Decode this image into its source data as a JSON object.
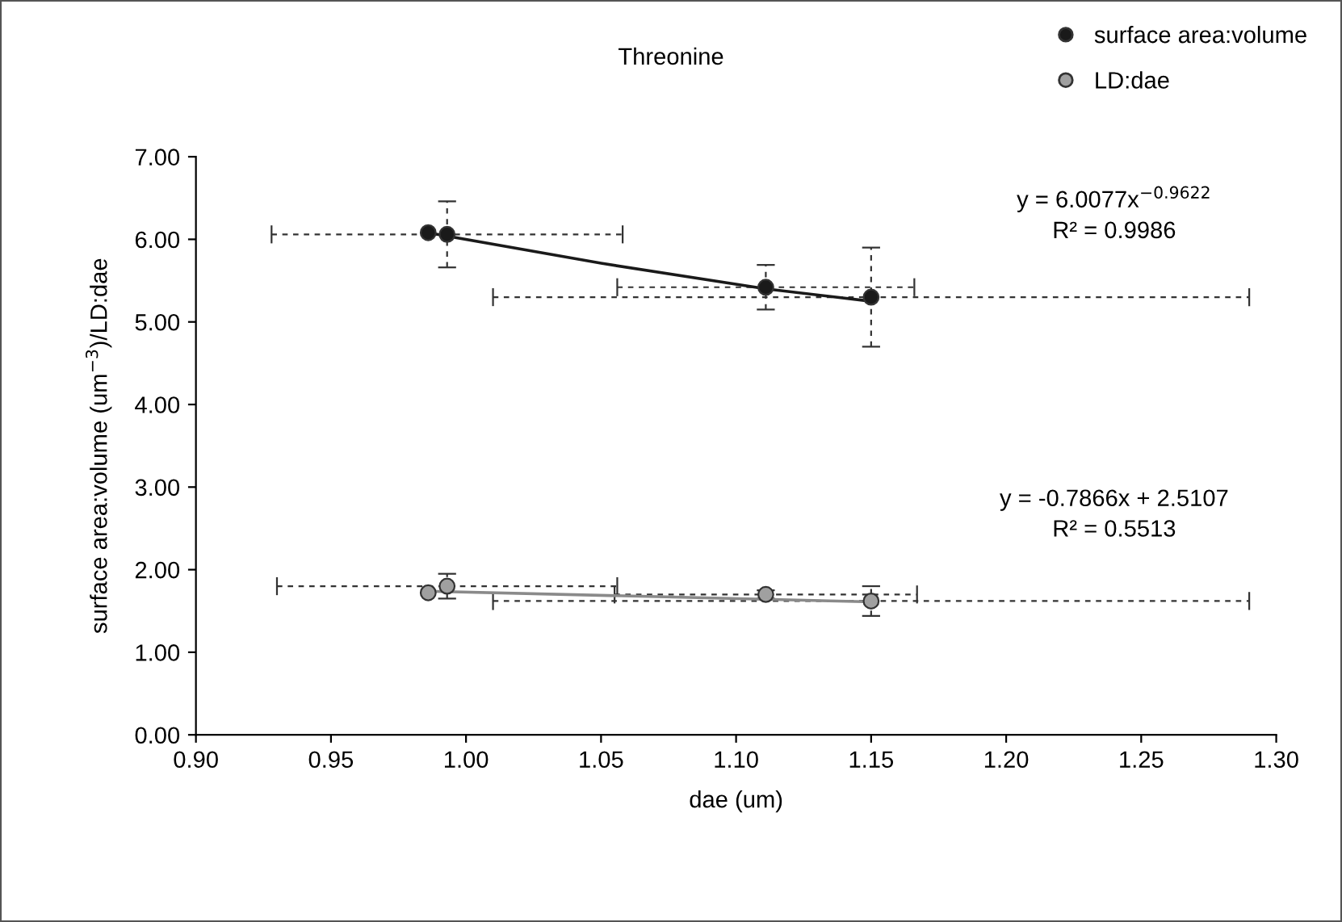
{
  "chart_data": {
    "type": "scatter",
    "title": "Threonine",
    "xlabel": "dae (um)",
    "ylabel": "surface area:volume (um$^{−3}$)/LD:dae",
    "xlim": [
      0.9,
      1.3
    ],
    "xticks": [
      {
        "value": 0.9,
        "label": "0.90"
      },
      {
        "value": 0.95,
        "label": "0.95"
      },
      {
        "value": 1.0,
        "label": "1.00"
      },
      {
        "value": 1.05,
        "label": "1.05"
      },
      {
        "value": 1.1,
        "label": "1.10"
      },
      {
        "value": 1.15,
        "label": "1.15"
      },
      {
        "value": 1.2,
        "label": "1.20"
      },
      {
        "value": 1.25,
        "label": "1.25"
      },
      {
        "value": 1.3,
        "label": "1.30"
      }
    ],
    "ylim": [
      0,
      7
    ],
    "yticks": [
      {
        "value": 0,
        "label": "0.00"
      },
      {
        "value": 1,
        "label": "1.00"
      },
      {
        "value": 2,
        "label": "2.00"
      },
      {
        "value": 3,
        "label": "3.00"
      },
      {
        "value": 4,
        "label": "4.00"
      },
      {
        "value": 5,
        "label": "5.00"
      },
      {
        "value": 6,
        "label": "6.00"
      },
      {
        "value": 7,
        "label": "7.00"
      }
    ],
    "grid": false,
    "legend": "top right",
    "marker": "circle",
    "series": [
      {
        "name": "surface area:volume",
        "color": "#1a1a1a",
        "x": [
          0.986,
          0.993,
          1.111,
          1.15
        ],
        "values": [
          6.08,
          6.06,
          5.42,
          5.3
        ],
        "errors": [
          null,
          0.4,
          0.27,
          0.6
        ],
        "xerrors": [
          null,
          0.065,
          0.055,
          0.14
        ]
      },
      {
        "name": "LD:dae",
        "color": "#a0a0a0",
        "x": [
          0.986,
          0.993,
          1.111,
          1.15
        ],
        "values": [
          1.72,
          1.8,
          1.7,
          1.62
        ],
        "errors": [
          null,
          0.15,
          0.05,
          0.18
        ],
        "xerrors": [
          null,
          0.063,
          0.056,
          0.14
        ]
      },
      {
        "type": "line",
        "marker": "none",
        "color": "#1a1a1a",
        "x": [
          0.986,
          1.05,
          1.111,
          1.15
        ],
        "values": [
          6.08,
          5.71,
          5.4,
          5.25
        ]
      },
      {
        "type": "line",
        "marker": "none",
        "color": "#8a8a8a",
        "x": [
          0.986,
          1.15
        ],
        "values": [
          1.74,
          1.61
        ]
      }
    ],
    "annotations": [
      "y = 6.0077x$^{−0.9622}$\nR² = 0.9986",
      "y = -0.7866x + 2.5107\nR² = 0.5513"
    ]
  }
}
